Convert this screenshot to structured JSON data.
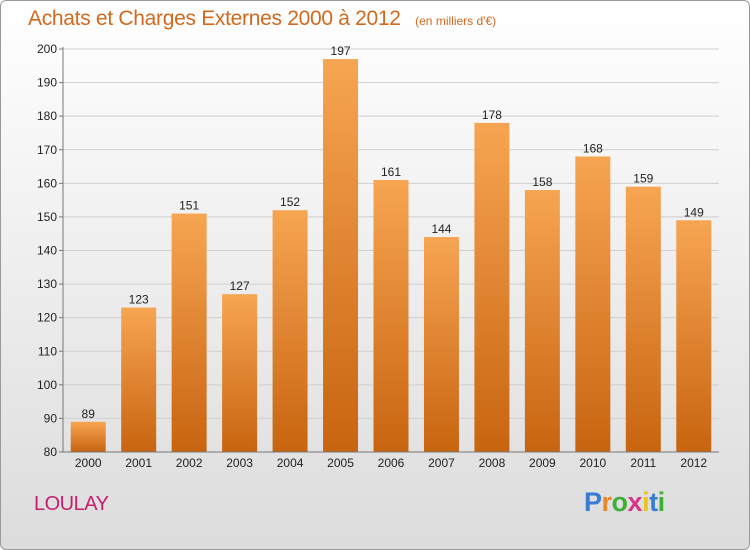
{
  "header": {
    "title": "Achats et Charges Externes 2000 à 2012",
    "subtitle": "(en milliers d'€)"
  },
  "footer": {
    "place": "LOULAY",
    "logo_letters": [
      "P",
      "r",
      "o",
      "x",
      "i",
      "t",
      "i"
    ]
  },
  "colors": {
    "bar_top": "#f7a552",
    "bar_bottom": "#c86410",
    "title": "#d2691e",
    "place": "#c81e6e"
  },
  "chart_data": {
    "type": "bar",
    "title": "Achats et Charges Externes 2000 à 2012",
    "subtitle": "(en milliers d'€)",
    "xlabel": "",
    "ylabel": "",
    "categories": [
      "2000",
      "2001",
      "2002",
      "2003",
      "2004",
      "2005",
      "2006",
      "2007",
      "2008",
      "2009",
      "2010",
      "2011",
      "2012"
    ],
    "values": [
      89,
      123,
      151,
      127,
      152,
      197,
      161,
      144,
      178,
      158,
      168,
      159,
      149
    ],
    "ylim": [
      80,
      200
    ],
    "yticks": [
      80,
      90,
      100,
      110,
      120,
      130,
      140,
      150,
      160,
      170,
      180,
      190,
      200
    ],
    "grid": true,
    "legend": "none"
  }
}
